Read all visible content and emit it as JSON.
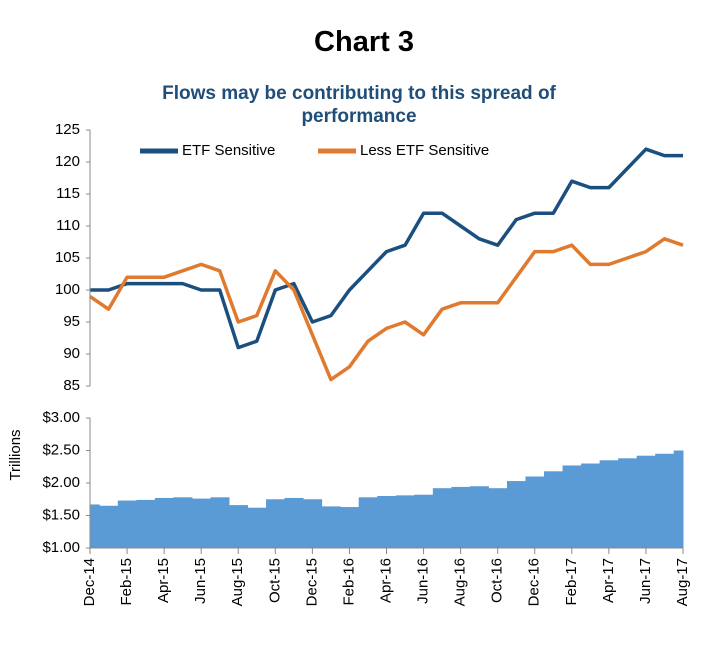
{
  "title": "Chart 3",
  "chart_data": [
    {
      "type": "line",
      "title": "Flows may be contributing to this spread of performance",
      "ylim": [
        85,
        125
      ],
      "yticks": [
        85,
        90,
        95,
        100,
        105,
        110,
        115,
        120,
        125
      ],
      "legend": "top-left",
      "series": [
        {
          "name": "ETF Sensitive",
          "color": "#1b4f7f",
          "values": [
            100,
            100,
            101,
            101,
            101,
            101,
            100,
            100,
            91,
            92,
            100,
            101,
            95,
            96,
            100,
            103,
            106,
            107,
            112,
            112,
            110,
            108,
            107,
            111,
            112,
            112,
            117,
            116,
            116,
            119,
            122,
            121,
            121
          ]
        },
        {
          "name": "Less ETF Sensitive",
          "color": "#e07a2e",
          "values": [
            99,
            97,
            102,
            102,
            102,
            103,
            104,
            103,
            95,
            96,
            103,
            100,
            93,
            86,
            88,
            92,
            94,
            95,
            93,
            97,
            98,
            98,
            98,
            102,
            106,
            106,
            107,
            104,
            104,
            105,
            106,
            108,
            107
          ]
        }
      ]
    },
    {
      "type": "area",
      "ylabel": "Trillions",
      "color": "#5b9bd5",
      "categories": [
        "Dec-14",
        null,
        "Feb-15",
        null,
        "Apr-15",
        null,
        "Jun-15",
        null,
        "Aug-15",
        null,
        "Oct-15",
        null,
        "Dec-15",
        null,
        "Feb-16",
        null,
        "Apr-16",
        null,
        "Jun-16",
        null,
        "Aug-16",
        null,
        "Oct-16",
        null,
        "Dec-16",
        null,
        "Feb-17",
        null,
        "Apr-17",
        null,
        "Jun-17",
        null,
        "Aug-17"
      ],
      "values": [
        1.67,
        1.65,
        1.73,
        1.74,
        1.77,
        1.78,
        1.76,
        1.78,
        1.66,
        1.62,
        1.75,
        1.77,
        1.75,
        1.64,
        1.63,
        1.78,
        1.8,
        1.81,
        1.82,
        1.92,
        1.94,
        1.95,
        1.92,
        2.03,
        2.1,
        2.18,
        2.27,
        2.3,
        2.35,
        2.38,
        2.42,
        2.45,
        2.5
      ],
      "ylim": [
        1,
        3
      ],
      "yticks": [
        {
          "value": 1,
          "label": "$1.00"
        },
        {
          "value": 1.5,
          "label": "$1.50"
        },
        {
          "value": 2,
          "label": "$2.00"
        },
        {
          "value": 2.5,
          "label": "$2.50"
        },
        {
          "value": 3,
          "label": "$3.00"
        }
      ]
    }
  ]
}
